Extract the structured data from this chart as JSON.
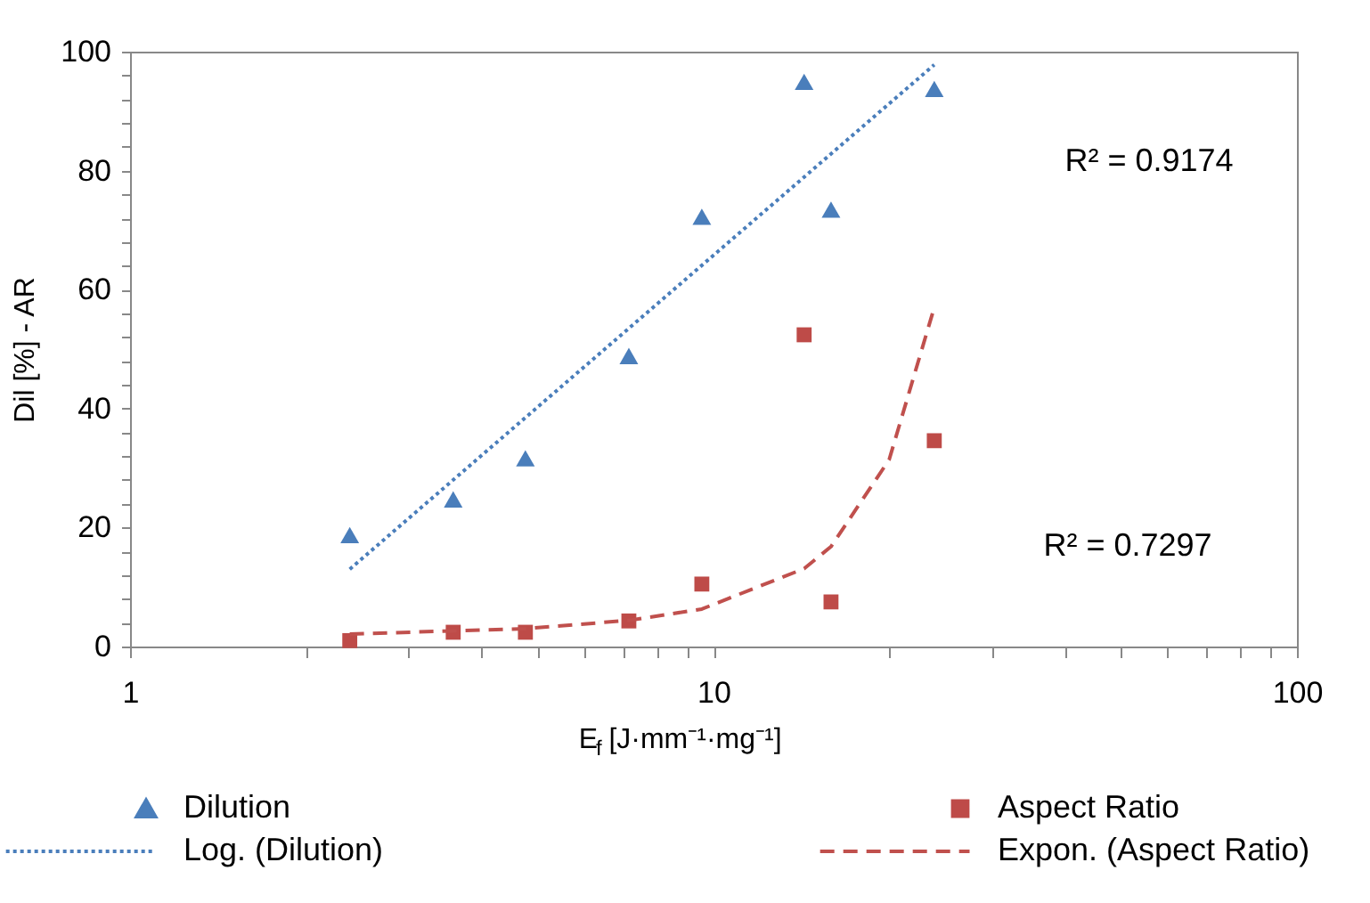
{
  "chart_data": {
    "type": "scatter",
    "xlabel": "E$_{f}$ [J·mm⁻¹·mg⁻¹]",
    "ylabel": "Dil [%] - AR",
    "log": "x",
    "xlim": [
      1,
      100
    ],
    "ylim": [
      0,
      100
    ],
    "xticks": [
      1,
      {
        "value": 2,
        "label": null
      },
      {
        "value": 3,
        "label": null
      },
      {
        "value": 4,
        "label": null
      },
      {
        "value": 5,
        "label": null
      },
      {
        "value": 6,
        "label": null
      },
      {
        "value": 7,
        "label": null
      },
      {
        "value": 8,
        "label": null
      },
      {
        "value": 9,
        "label": null
      },
      10,
      {
        "value": 20,
        "label": null
      },
      {
        "value": 30,
        "label": null
      },
      {
        "value": 40,
        "label": null
      },
      {
        "value": 50,
        "label": null
      },
      {
        "value": 60,
        "label": null
      },
      {
        "value": 70,
        "label": null
      },
      {
        "value": 80,
        "label": null
      },
      {
        "value": 90,
        "label": null
      },
      100
    ],
    "yticks": [
      0,
      {
        "value": 4,
        "label": null
      },
      {
        "value": 8,
        "label": null
      },
      {
        "value": 12,
        "label": null
      },
      {
        "value": 16,
        "label": null
      },
      20,
      {
        "value": 24,
        "label": null
      },
      {
        "value": 28,
        "label": null
      },
      {
        "value": 32,
        "label": null
      },
      {
        "value": 36,
        "label": null
      },
      40,
      {
        "value": 44,
        "label": null
      },
      {
        "value": 48,
        "label": null
      },
      {
        "value": 52,
        "label": null
      },
      {
        "value": 56,
        "label": null
      },
      60,
      {
        "value": 64,
        "label": null
      },
      {
        "value": 68,
        "label": null
      },
      {
        "value": 72,
        "label": null
      },
      {
        "value": 76,
        "label": null
      },
      80,
      {
        "value": 84,
        "label": null
      },
      {
        "value": 88,
        "label": null
      },
      {
        "value": 92,
        "label": null
      },
      {
        "value": 96,
        "label": null
      },
      100
    ],
    "grid": false,
    "legend": "bottom",
    "annotations": [
      "R² = 0.9174",
      "R² = 0.7297"
    ],
    "series": [
      {
        "name": "Dilution",
        "marker": "triangle",
        "color": "#4a7ebb",
        "x": [
          2.38,
          3.58,
          4.76,
          7.16,
          9.55,
          14.3,
          15.9,
          23.9
        ],
        "values": [
          18.7,
          24.7,
          31.6,
          48.8,
          72.2,
          94.9,
          73.4,
          93.7
        ]
      },
      {
        "name": "Aspect Ratio",
        "marker": "square",
        "color": "#be4b48",
        "x": [
          2.38,
          3.58,
          4.76,
          7.16,
          9.55,
          14.3,
          15.9,
          23.9
        ],
        "values": [
          1.0,
          2.4,
          2.4,
          4.3,
          10.5,
          52.4,
          7.5,
          34.6
        ]
      },
      {
        "name": "Log. (Dilution)",
        "type": "line",
        "line_style": "dotted",
        "color": "#4a7ebb",
        "x": [
          2.38,
          23.9
        ],
        "values": [
          13.0,
          97.8
        ]
      },
      {
        "name": "Expon. (Aspect Ratio)",
        "type": "line",
        "line_style": "dashed",
        "color": "#c0504d",
        "x": [
          2.38,
          4.76,
          7.16,
          9.55,
          14.3,
          15.9,
          20,
          23.9
        ],
        "values": [
          2.1,
          3.0,
          4.4,
          6.3,
          13.1,
          16.8,
          31.4,
          57.0
        ]
      }
    ]
  }
}
